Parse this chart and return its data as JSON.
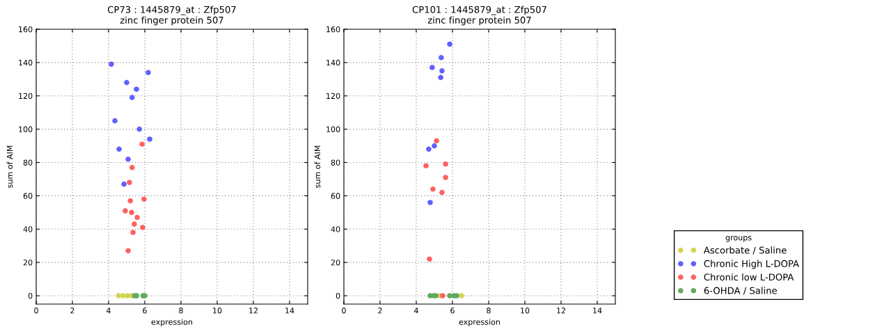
{
  "chart_data": [
    {
      "type": "scatter",
      "title": "CP73 : 1445879_at : Zfp507\nzinc finger protein 507",
      "xlabel": "expression",
      "ylabel": "sum of AIM",
      "xlim": [
        0,
        15
      ],
      "ylim": [
        -5,
        160
      ],
      "xticks": [
        0,
        2,
        4,
        6,
        8,
        10,
        12,
        14
      ],
      "yticks": [
        0,
        20,
        40,
        60,
        80,
        100,
        120,
        140,
        160
      ],
      "grid": true,
      "marker": "circle",
      "series": [
        {
          "color": "#d4d454",
          "x": [
            4.55,
            4.8,
            5.04,
            5.27,
            5.4
          ],
          "values": [
            0,
            0,
            0,
            0,
            0
          ]
        },
        {
          "color": "#6060ff",
          "x": [
            4.15,
            6.19,
            5.0,
            5.54,
            5.3,
            4.35,
            5.7,
            6.27,
            4.58,
            5.08,
            4.85
          ],
          "values": [
            139,
            134,
            128,
            124,
            119,
            105,
            100,
            94,
            88,
            82,
            67
          ]
        },
        {
          "color": "#ff6060",
          "x": [
            5.85,
            5.3,
            5.15,
            5.2,
            5.96,
            4.92,
            5.27,
            5.58,
            5.42,
            5.88,
            5.35,
            5.08
          ],
          "values": [
            91,
            77,
            68,
            57,
            58,
            51,
            50,
            47,
            43,
            41,
            38,
            27
          ]
        },
        {
          "color": "#60aa60",
          "x": [
            5.45,
            5.55,
            5.9,
            6.0,
            5.95
          ],
          "values": [
            0,
            0,
            0,
            0,
            0
          ]
        }
      ]
    },
    {
      "type": "scatter",
      "title": "CP101 : 1445879_at : Zfp507\nzinc finger protein 507",
      "xlabel": "expression",
      "ylabel": "sum of AIM",
      "xlim": [
        0,
        15
      ],
      "ylim": [
        -5,
        160
      ],
      "xticks": [
        0,
        2,
        4,
        6,
        8,
        10,
        12,
        14
      ],
      "yticks": [
        0,
        20,
        40,
        60,
        80,
        100,
        120,
        140,
        160
      ],
      "grid": true,
      "legend": "bottom right",
      "legend_title": "groups",
      "marker": "circle",
      "series": [
        {
          "name": "Ascorbate / Saline",
          "color": "#d4d454",
          "x": [
            5.31,
            6.08,
            6.5
          ],
          "values": [
            0,
            0,
            0
          ]
        },
        {
          "name": "Chronic High L-DOPA",
          "color": "#6060ff",
          "x": [
            5.85,
            5.38,
            4.88,
            5.42,
            5.35,
            5.0,
            4.69,
            4.77
          ],
          "values": [
            151,
            143,
            137,
            135,
            131,
            90,
            88,
            56
          ]
        },
        {
          "name": "Chronic low L-DOPA",
          "color": "#ff6060",
          "x": [
            5.12,
            4.54,
            5.62,
            5.62,
            4.92,
            5.42,
            4.73,
            5.46
          ],
          "values": [
            93,
            78,
            79,
            71,
            64,
            62,
            22,
            0
          ]
        },
        {
          "name": "6-OHDA / Saline",
          "color": "#60aa60",
          "x": [
            4.77,
            4.96,
            5.08,
            5.85,
            6.08,
            6.23
          ],
          "values": [
            0,
            0,
            0,
            0,
            0,
            0
          ]
        }
      ]
    }
  ]
}
